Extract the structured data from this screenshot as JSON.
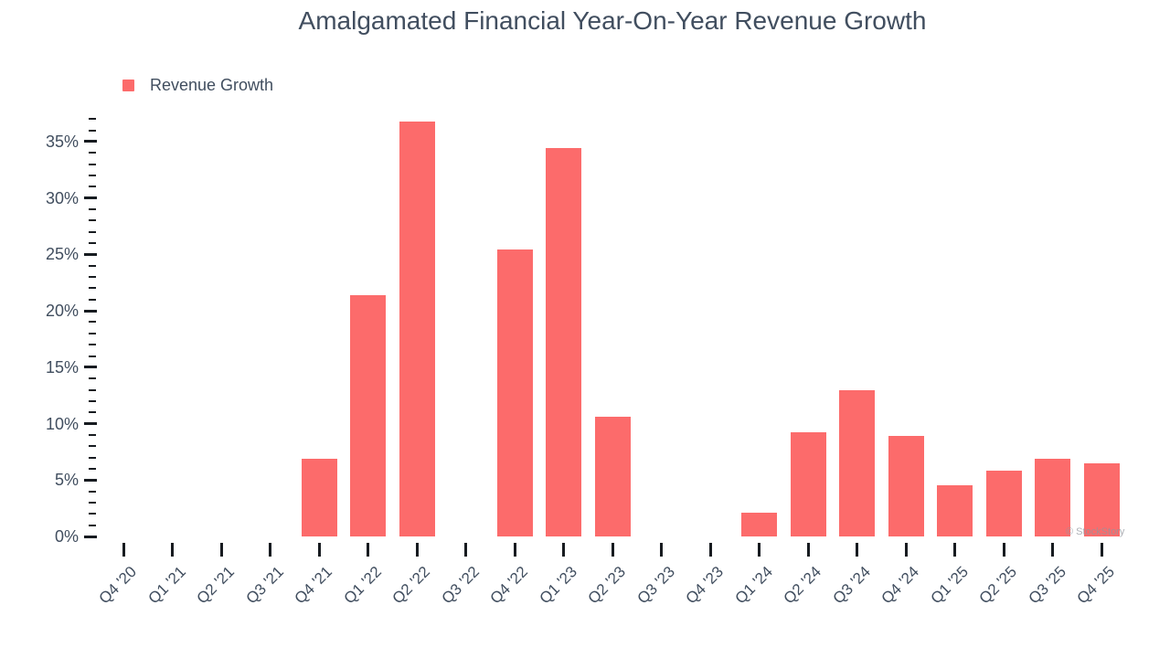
{
  "header": {
    "title": "Amalgamated Financial Year-On-Year Revenue Growth"
  },
  "legend": {
    "label": "Revenue Growth"
  },
  "watermark": "© StockStory",
  "colors": {
    "bar": "#fc6b6b",
    "text": "#414e5f",
    "tick": "#171b20",
    "background": "#ffffff"
  },
  "chart_data": {
    "type": "bar",
    "title": "Amalgamated Financial Year-On-Year Revenue Growth",
    "series": [
      {
        "name": "Revenue Growth",
        "values": [
          null,
          null,
          null,
          null,
          6.9,
          21.4,
          36.8,
          null,
          25.4,
          34.4,
          10.6,
          null,
          null,
          2.1,
          9.2,
          13.0,
          8.9,
          4.5,
          5.8,
          6.9,
          6.5
        ]
      }
    ],
    "categories": [
      "Q4 '20",
      "Q1 '21",
      "Q2 '21",
      "Q3 '21",
      "Q4 '21",
      "Q1 '22",
      "Q2 '22",
      "Q3 '22",
      "Q4 '22",
      "Q1 '23",
      "Q2 '23",
      "Q3 '23",
      "Q4 '23",
      "Q1 '24",
      "Q2 '24",
      "Q3 '24",
      "Q4 '24",
      "Q1 '25",
      "Q2 '25",
      "Q3 '25",
      "Q4 '25"
    ],
    "xlabel": "",
    "ylabel": "",
    "value_unit": "%",
    "y_axis": {
      "min": 0,
      "max": 37,
      "major_step": 5,
      "minor_step": 1,
      "major_tick_labels": [
        "0%",
        "5%",
        "10%",
        "15%",
        "20%",
        "25%",
        "30%",
        "35%"
      ]
    },
    "grid": false,
    "legend_position": "top-left"
  }
}
